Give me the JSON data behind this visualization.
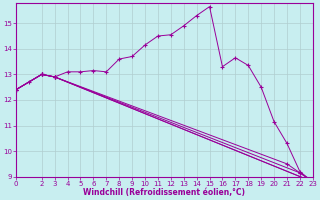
{
  "xlabel": "Windchill (Refroidissement éolien,°C)",
  "bg_color": "#c8eef0",
  "line_color": "#990099",
  "grid_color": "#b0cdd0",
  "xlim": [
    0,
    23
  ],
  "ylim": [
    9,
    15.8
  ],
  "yticks": [
    9,
    10,
    11,
    12,
    13,
    14,
    15
  ],
  "xticks": [
    0,
    2,
    3,
    4,
    5,
    6,
    7,
    8,
    9,
    10,
    11,
    12,
    13,
    14,
    15,
    16,
    17,
    18,
    19,
    20,
    21,
    22,
    23
  ],
  "series": [
    {
      "x": [
        0,
        1,
        2,
        3,
        4,
        5,
        6,
        7,
        8,
        9,
        10,
        11,
        12,
        13,
        14,
        15,
        16,
        17,
        18,
        19,
        20,
        21,
        22,
        23
      ],
      "y": [
        12.4,
        12.7,
        13.0,
        12.9,
        13.1,
        13.1,
        13.15,
        13.1,
        13.6,
        13.7,
        14.15,
        14.5,
        14.55,
        14.9,
        15.3,
        15.65,
        13.3,
        13.65,
        13.35,
        12.5,
        11.15,
        10.3,
        9.2,
        8.8
      ]
    },
    {
      "x": [
        0,
        2,
        3,
        23
      ],
      "y": [
        12.4,
        13.0,
        12.9,
        8.8
      ]
    },
    {
      "x": [
        0,
        2,
        3,
        23
      ],
      "y": [
        12.4,
        13.0,
        12.9,
        8.8
      ]
    },
    {
      "x": [
        0,
        2,
        3,
        22,
        23
      ],
      "y": [
        12.4,
        13.0,
        12.9,
        9.15,
        8.8
      ]
    },
    {
      "x": [
        0,
        2,
        3,
        21,
        22,
        23
      ],
      "y": [
        12.4,
        13.0,
        12.9,
        9.5,
        9.15,
        8.8
      ]
    }
  ]
}
